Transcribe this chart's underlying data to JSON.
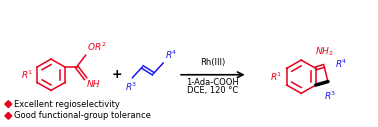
{
  "background_color": "#ffffff",
  "red_color": "#e8001c",
  "blue_color": "#1a1aee",
  "black_color": "#000000",
  "bullet_color": "#e8001c",
  "reaction_conditions_line1": "Rh(III)",
  "reaction_conditions_line2": "1-Ada-COOH",
  "reaction_conditions_line3": "DCE, 120 °C",
  "bullet1_text": "Excellent regioselectivity",
  "bullet2_text": "Good functional-group tolerance",
  "figsize": [
    3.78,
    1.27
  ],
  "dpi": 100
}
